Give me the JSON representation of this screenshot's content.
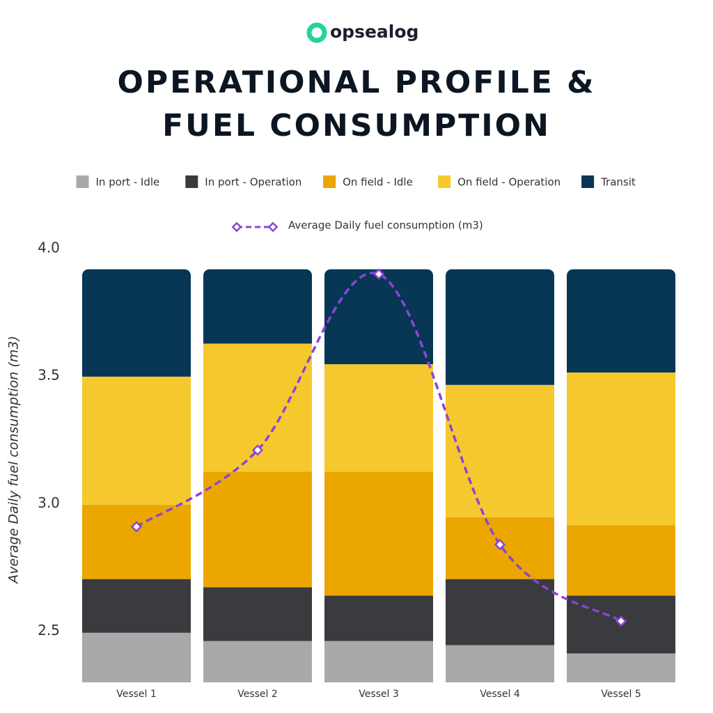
{
  "brand": "opsealog",
  "chart_data": {
    "type": "bar",
    "stacked": true,
    "title": "OPERATIONAL PROFILE & FUEL CONSUMPTION",
    "ylabel": "Average Daily fuel consumption (m3)",
    "categories": [
      "Vessel 1",
      "Vessel 2",
      "Vessel 3",
      "Vessel 4",
      "Vessel 5"
    ],
    "ylim": [
      2.3,
      4.0
    ],
    "yticks": [
      2.5,
      {
        "value": 3,
        "label": "3.0"
      },
      3.5,
      {
        "value": 4,
        "label": "4.0"
      }
    ],
    "y2lim": [
      0,
      105
    ],
    "series": [
      {
        "name": "In port - Idle",
        "type": "bar",
        "axis": "y2",
        "color": "#a9a9a9",
        "values": [
          12,
          10,
          10,
          9,
          7
        ]
      },
      {
        "name": "In port - Operation",
        "type": "bar",
        "axis": "y2",
        "color": "#3a3b3e",
        "values": [
          13,
          13,
          11,
          16,
          14
        ]
      },
      {
        "name": "On field - Idle",
        "type": "bar",
        "axis": "y2",
        "color": "#eba600",
        "values": [
          18,
          28,
          30,
          15,
          17
        ]
      },
      {
        "name": "On field - Operation",
        "type": "bar",
        "axis": "y2",
        "color": "#f5c92e",
        "values": [
          31,
          31,
          26,
          32,
          37
        ]
      },
      {
        "name": "Transit",
        "type": "bar",
        "axis": "y2",
        "color": "#083655",
        "values": [
          26,
          18,
          23,
          28,
          25
        ]
      },
      {
        "name": "Average Daily fuel consumption (m3)",
        "type": "line",
        "axis": "y",
        "color": "#8b45d6",
        "values": [
          2.91,
          3.21,
          3.9,
          2.84,
          2.54
        ]
      }
    ]
  }
}
